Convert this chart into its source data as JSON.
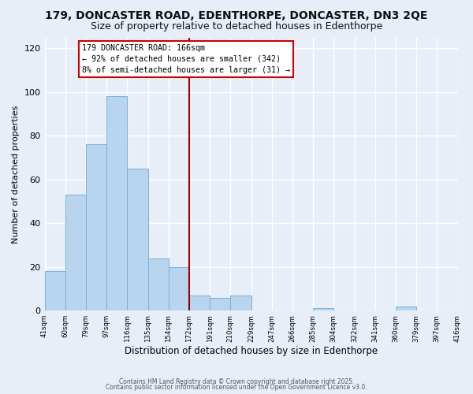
{
  "title": "179, DONCASTER ROAD, EDENTHORPE, DONCASTER, DN3 2QE",
  "subtitle": "Size of property relative to detached houses in Edenthorpe",
  "xlabel": "Distribution of detached houses by size in Edenthorpe",
  "ylabel": "Number of detached properties",
  "bar_values": [
    18,
    53,
    76,
    98,
    65,
    24,
    20,
    7,
    6,
    7,
    0,
    0,
    0,
    1,
    0,
    0,
    0,
    2
  ],
  "bin_labels": [
    "41sqm",
    "60sqm",
    "79sqm",
    "97sqm",
    "116sqm",
    "135sqm",
    "154sqm",
    "172sqm",
    "191sqm",
    "210sqm",
    "229sqm",
    "247sqm",
    "266sqm",
    "285sqm",
    "304sqm",
    "322sqm",
    "341sqm",
    "360sqm",
    "379sqm",
    "397sqm",
    "416sqm"
  ],
  "bar_color": "#b8d4ef",
  "bar_edge_color": "#7ab0d8",
  "vline_color": "#990000",
  "annotation_title": "179 DONCASTER ROAD: 166sqm",
  "annotation_line1": "← 92% of detached houses are smaller (342)",
  "annotation_line2": "8% of semi-detached houses are larger (31) →",
  "annotation_box_color": "#ffffff",
  "annotation_box_edge": "#cc0000",
  "ylim": [
    0,
    125
  ],
  "yticks": [
    0,
    20,
    40,
    60,
    80,
    100,
    120
  ],
  "footer1": "Contains HM Land Registry data © Crown copyright and database right 2025.",
  "footer2": "Contains public sector information licensed under the Open Government Licence v3.0.",
  "bg_color": "#e8eef8",
  "plot_bg_color": "#e8eef8",
  "title_fontsize": 10,
  "subtitle_fontsize": 9,
  "grid_color": "#ffffff"
}
